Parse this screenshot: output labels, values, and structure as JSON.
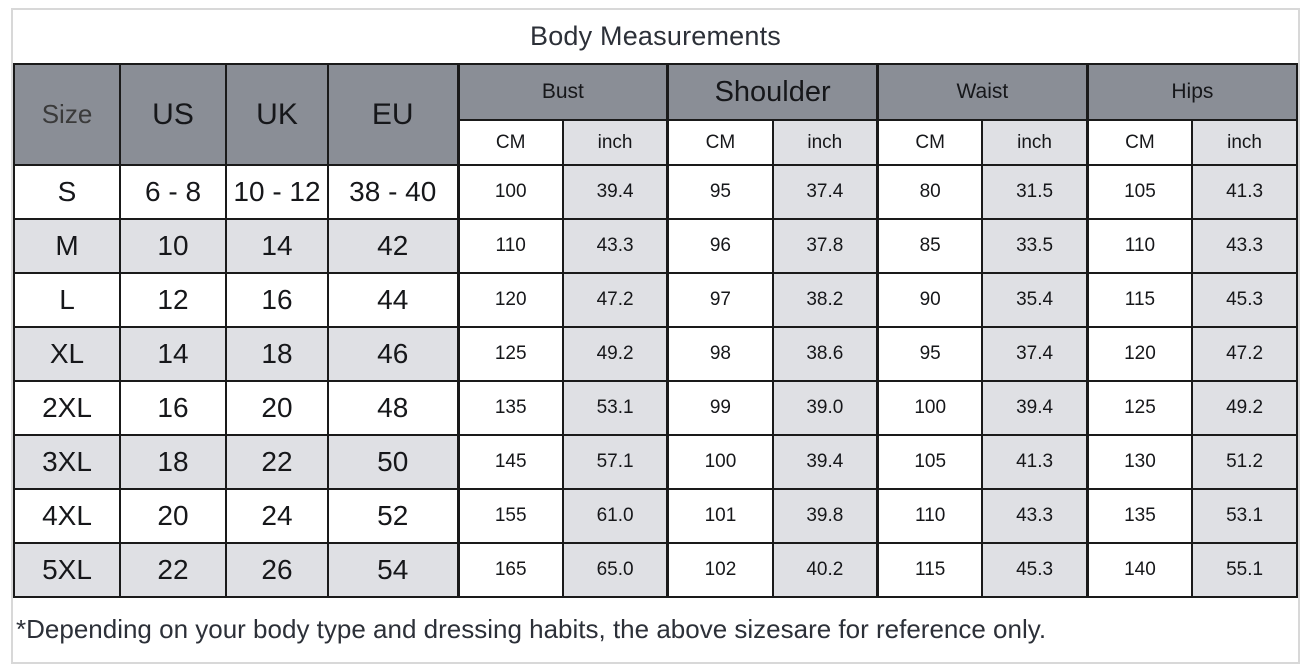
{
  "title": "Body Measurements",
  "footer_note": "*Depending on your body type and dressing habits, the above sizesare for reference only.",
  "header": {
    "size_label": "Size",
    "us_label": "US",
    "uk_label": "UK",
    "eu_label": "EU",
    "measurement_groups": [
      "Bust",
      "Shoulder",
      "Waist",
      "Hips"
    ],
    "cm_label": "CM",
    "inch_label": "inch"
  },
  "colors": {
    "header_gray": "#8A8E96",
    "stripe_gray": "#DFE0E4",
    "grid_border": "#1A1A1A",
    "outer_border": "#D8D8D8",
    "main_text": "#16171A",
    "soft_text": "#3A3A3A",
    "title_text": "#2C3038"
  },
  "chart_data": {
    "type": "table",
    "title": "Body Measurements",
    "columns": [
      "Size",
      "US",
      "UK",
      "EU",
      "Bust CM",
      "Bust inch",
      "Shoulder CM",
      "Shoulder inch",
      "Waist CM",
      "Waist inch",
      "Hips CM",
      "Hips inch"
    ],
    "column_keys": [
      "size",
      "us",
      "uk",
      "eu",
      "bust-cm",
      "bust-inch",
      "shoulder-cm",
      "shoulder-inch",
      "waist-cm",
      "waist-inch",
      "hips-cm",
      "hips-inch"
    ],
    "rows": [
      [
        "S",
        "6 - 8",
        "10 - 12",
        "38 - 40",
        "100",
        "39.4",
        "95",
        "37.4",
        "80",
        "31.5",
        "105",
        "41.3"
      ],
      [
        "M",
        "10",
        "14",
        "42",
        "110",
        "43.3",
        "96",
        "37.8",
        "85",
        "33.5",
        "110",
        "43.3"
      ],
      [
        "L",
        "12",
        "16",
        "44",
        "120",
        "47.2",
        "97",
        "38.2",
        "90",
        "35.4",
        "115",
        "45.3"
      ],
      [
        "XL",
        "14",
        "18",
        "46",
        "125",
        "49.2",
        "98",
        "38.6",
        "95",
        "37.4",
        "120",
        "47.2"
      ],
      [
        "2XL",
        "16",
        "20",
        "48",
        "135",
        "53.1",
        "99",
        "39.0",
        "100",
        "39.4",
        "125",
        "49.2"
      ],
      [
        "3XL",
        "18",
        "22",
        "50",
        "145",
        "57.1",
        "100",
        "39.4",
        "105",
        "41.3",
        "130",
        "51.2"
      ],
      [
        "4XL",
        "20",
        "24",
        "52",
        "155",
        "61.0",
        "101",
        "39.8",
        "110",
        "43.3",
        "135",
        "53.1"
      ],
      [
        "5XL",
        "22",
        "26",
        "54",
        "165",
        "65.0",
        "102",
        "40.2",
        "115",
        "45.3",
        "140",
        "55.1"
      ]
    ],
    "footnote": "*Depending on your body type and dressing habits, the above sizesare for reference only."
  }
}
